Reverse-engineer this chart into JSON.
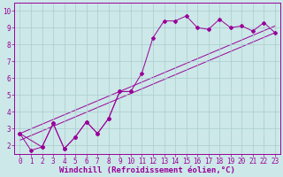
{
  "xlabel": "Windchill (Refroidissement éolien,°C)",
  "bg_color": "#cce8e8",
  "grid_color": "#aacccc",
  "line_color": "#990099",
  "xlim": [
    -0.5,
    23.5
  ],
  "ylim": [
    1.5,
    10.5
  ],
  "xticks": [
    0,
    1,
    2,
    3,
    4,
    5,
    6,
    7,
    8,
    9,
    10,
    11,
    12,
    13,
    14,
    15,
    16,
    17,
    18,
    19,
    20,
    21,
    22,
    23
  ],
  "yticks": [
    2,
    3,
    4,
    5,
    6,
    7,
    8,
    9,
    10
  ],
  "series": [
    {
      "x": [
        0,
        1,
        2,
        3,
        4,
        5,
        6,
        7,
        8,
        9,
        10,
        11,
        12,
        13,
        14,
        15,
        16,
        17,
        18,
        19,
        20,
        21,
        22,
        23
      ],
      "y": [
        2.7,
        1.7,
        1.9,
        3.3,
        1.8,
        2.5,
        3.4,
        2.7,
        3.6,
        5.2,
        5.2,
        6.3,
        8.4,
        9.4,
        9.4,
        9.7,
        9.0,
        8.9,
        9.5,
        9.0,
        9.1,
        8.8,
        9.3,
        8.7
      ]
    },
    {
      "x": [
        0,
        2,
        3,
        4,
        5,
        6,
        7,
        8,
        9,
        10
      ],
      "y": [
        2.7,
        1.9,
        3.3,
        1.8,
        2.5,
        3.4,
        2.7,
        3.6,
        5.2,
        5.2
      ]
    },
    {
      "x": [
        0,
        23
      ],
      "y": [
        2.3,
        8.7
      ]
    },
    {
      "x": [
        0,
        23
      ],
      "y": [
        2.7,
        9.1
      ]
    }
  ],
  "xlabel_fontsize": 6.5,
  "tick_fontsize": 5.5
}
